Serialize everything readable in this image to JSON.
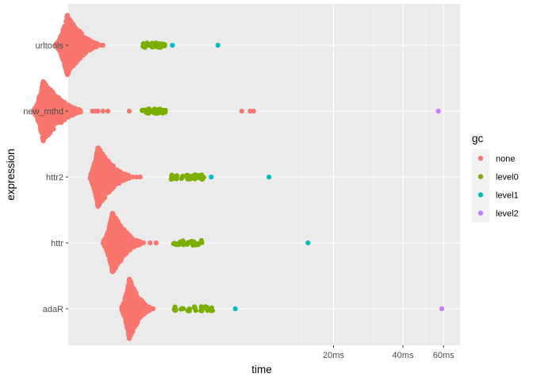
{
  "chart_data": {
    "type": "scatter",
    "xlabel": "time",
    "ylabel": "expression",
    "x_scale": "log10",
    "x_ticks": [
      "20ms",
      "40ms",
      "60ms"
    ],
    "categories": [
      "urltools",
      "new_mthd",
      "httr2",
      "httr",
      "adaR"
    ],
    "legend": {
      "title": "gc",
      "entries": [
        {
          "label": "none",
          "color": "#F8766D"
        },
        {
          "label": "level0",
          "color": "#7CAE00"
        },
        {
          "label": "level1",
          "color": "#00BFC4"
        },
        {
          "label": "level2",
          "color": "#C77CFF"
        }
      ],
      "position": "right"
    },
    "grid": true,
    "note": "beeswarm/violin-like distributions of benchmark times per expression; 'none' gc points form dense bulk",
    "series": {
      "urltools": {
        "none_range_ms": [
          1.25,
          1.9
        ],
        "none_mode_ms": 1.4,
        "none_outliers_ms": [
          1.95,
          2.0
        ],
        "level0_ms": [
          3.0,
          3.1,
          3.2,
          3.3,
          3.4,
          3.5,
          3.6,
          3.7
        ],
        "level1_ms": [
          4.0,
          6.3
        ],
        "level2_ms": []
      },
      "new_mthd": {
        "none_range_ms": [
          1.0,
          1.6
        ],
        "none_mode_ms": 1.1,
        "none_outliers_ms": [
          1.8,
          1.85,
          1.9,
          2.0,
          2.1,
          2.6,
          3.3,
          3.4,
          3.5
        ],
        "level0_ms": [
          3.0,
          3.1,
          3.2,
          3.3,
          3.4,
          3.5,
          3.6,
          3.7
        ],
        "level1_ms": [],
        "level2_ms": [
          57.0
        ],
        "extra_none_ms": [
          8.0,
          8.7,
          9.0
        ]
      },
      "httr2": {
        "none_range_ms": [
          1.75,
          2.6
        ],
        "none_mode_ms": 1.9,
        "none_outliers_ms": [
          2.7,
          2.8,
          2.9
        ],
        "level0_ms": [
          4.0,
          4.2,
          4.4,
          4.6,
          4.8,
          5.0,
          5.2,
          5.4
        ],
        "level1_ms": [
          5.9,
          10.5
        ],
        "level2_ms": []
      },
      "httr": {
        "none_range_ms": [
          2.0,
          2.9
        ],
        "none_mode_ms": 2.2,
        "none_outliers_ms": [
          3.0,
          3.2,
          3.4
        ],
        "level0_ms": [
          4.1,
          4.3,
          4.5,
          4.7,
          4.9,
          5.1,
          5.3
        ],
        "level1_ms": [
          15.5
        ],
        "level2_ms": []
      },
      "adaR": {
        "none_range_ms": [
          2.4,
          3.2
        ],
        "none_mode_ms": 2.6,
        "none_outliers_ms": [
          3.3
        ],
        "level0_ms": [
          4.1,
          4.4,
          4.7,
          5.0,
          5.3,
          5.6,
          5.9
        ],
        "level1_ms": [
          7.5
        ],
        "level2_ms": [
          59.0
        ]
      }
    }
  }
}
